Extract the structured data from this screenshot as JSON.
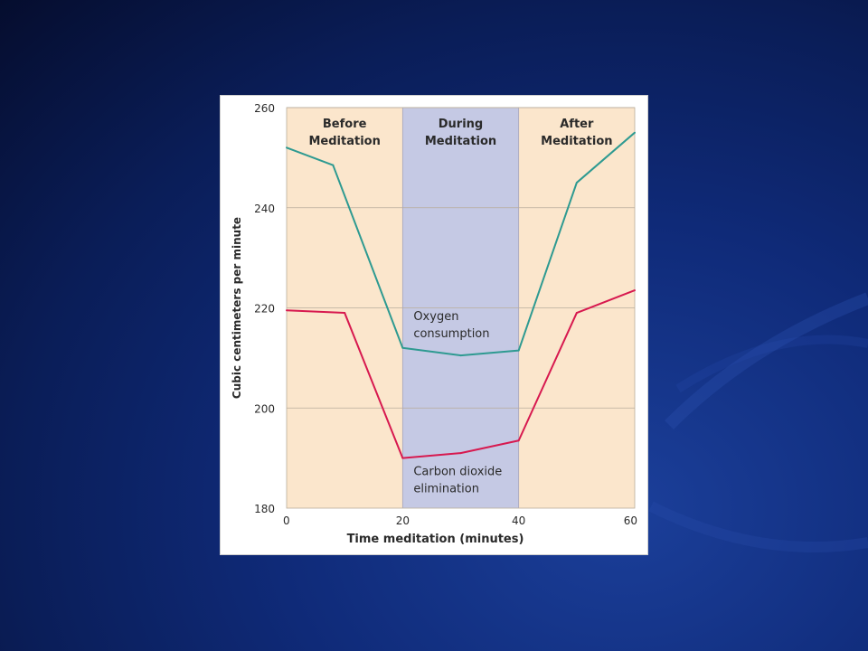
{
  "colors": {
    "background_dark": "#050d2e",
    "background_accent": "#1b3f9a",
    "phase_before_after": "#fbe6cc",
    "phase_during": "#c5c9e4",
    "oxygen_line": "#2e9a91",
    "co2_line": "#d7194f"
  },
  "chart_data": {
    "type": "line",
    "title": "",
    "xlabel": "Time meditation (minutes)",
    "ylabel": "Cubic centimeters per minute",
    "xlim": [
      0,
      60
    ],
    "ylim": [
      180,
      260
    ],
    "x_ticks": [
      0,
      20,
      40,
      60
    ],
    "y_ticks": [
      180,
      200,
      220,
      240,
      260
    ],
    "grid": true,
    "phases": [
      {
        "label_lines": [
          "Before",
          "Meditation"
        ],
        "x_range": [
          0,
          20
        ],
        "color": "#fbe6cc"
      },
      {
        "label_lines": [
          "During",
          "Meditation"
        ],
        "x_range": [
          20,
          40
        ],
        "color": "#c5c9e4"
      },
      {
        "label_lines": [
          "After",
          "Meditation"
        ],
        "x_range": [
          40,
          60
        ],
        "color": "#fbe6cc"
      }
    ],
    "series": [
      {
        "name": "Oxygen consumption",
        "label_lines": [
          "Oxygen",
          "consumption"
        ],
        "color": "#2e9a91",
        "x": [
          0,
          8,
          20,
          30,
          40,
          50,
          60
        ],
        "y": [
          252,
          248.5,
          212,
          210.5,
          211.5,
          245,
          255
        ]
      },
      {
        "name": "Carbon dioxide elimination",
        "label_lines": [
          "Carbon dioxide",
          "elimination"
        ],
        "color": "#d7194f",
        "x": [
          0,
          10,
          20,
          30,
          40,
          50,
          60
        ],
        "y": [
          219.5,
          219,
          190,
          191,
          193.5,
          219,
          223.5
        ]
      }
    ]
  }
}
